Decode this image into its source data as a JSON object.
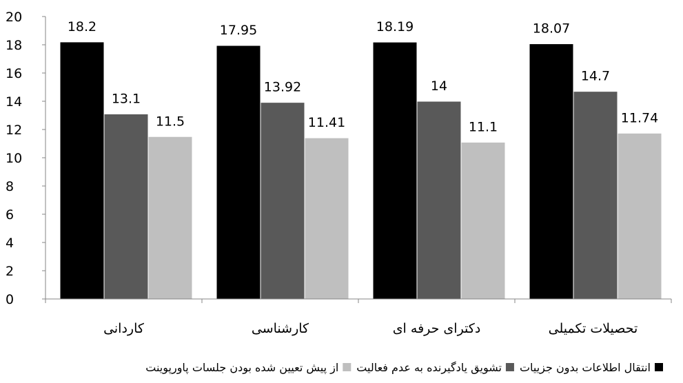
{
  "chart_data": {
    "type": "bar",
    "categories": [
      "کاردانی",
      "کارشناسی",
      "دکترای حرفه ای",
      "تحصیلات تکمیلی"
    ],
    "series": [
      {
        "name": "انتقال اطلاعات بدون جزییات",
        "color": "#000000",
        "values": [
          18.2,
          17.95,
          18.19,
          18.07
        ]
      },
      {
        "name": "تشویق یادگیرنده به عدم فعالیت",
        "color": "#595959",
        "values": [
          13.1,
          13.92,
          14,
          14.7
        ]
      },
      {
        "name": "از پیش تعیین شده بودن جلسات پاورپوینت",
        "color": "#bfbfbf",
        "values": [
          11.5,
          11.41,
          11.1,
          11.74
        ]
      }
    ],
    "ylim": [
      0,
      20
    ],
    "yticks": [
      0,
      2,
      4,
      6,
      8,
      10,
      12,
      14,
      16,
      18,
      20
    ],
    "grid": false,
    "legend": "bottom",
    "title": "",
    "xlabel": "",
    "ylabel": ""
  }
}
